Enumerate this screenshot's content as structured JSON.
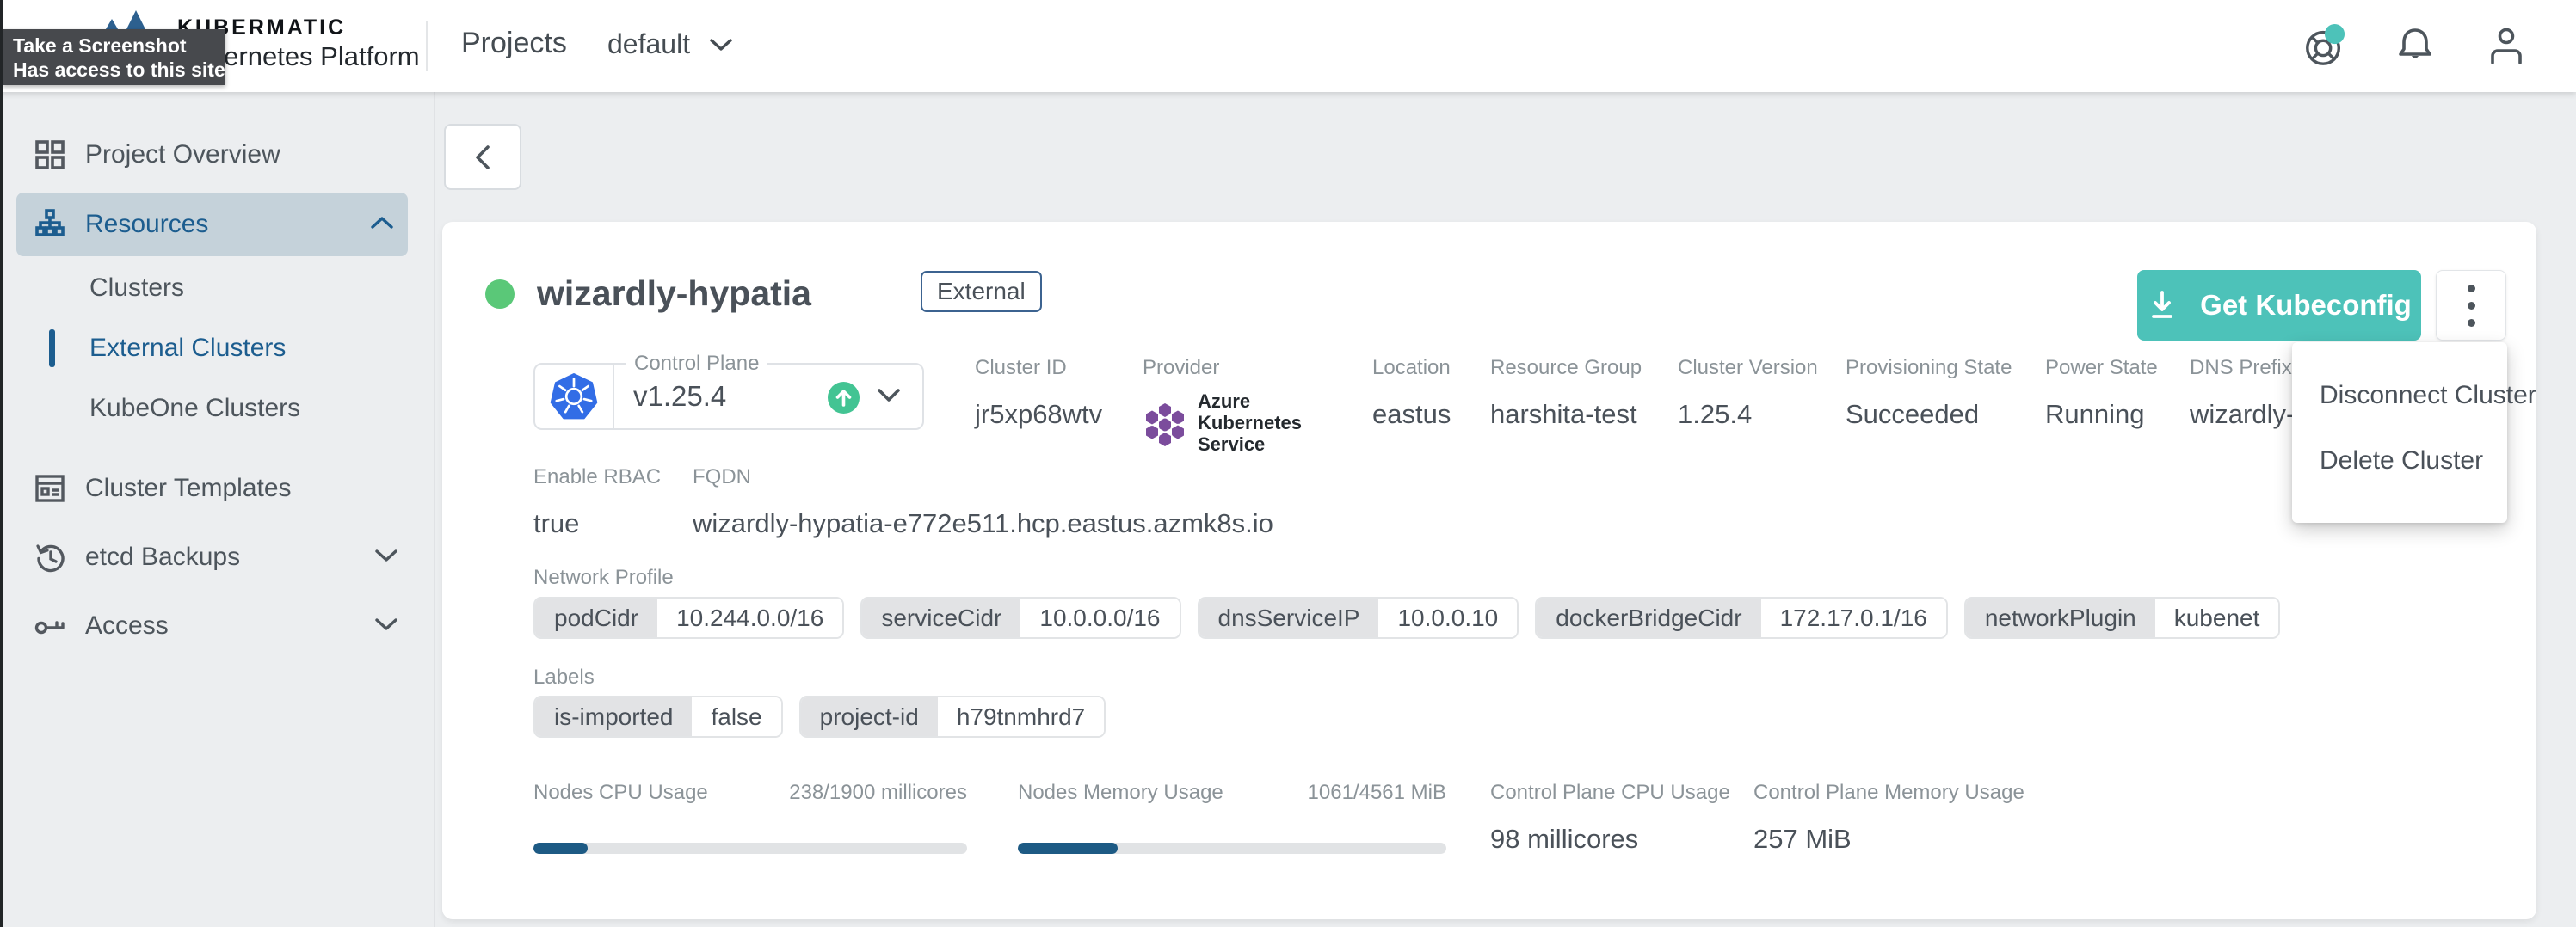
{
  "colors": {
    "accent_teal": "#4dc2b9",
    "nav_blue": "#1c5d8f",
    "progress_blue": "#1d5a84",
    "status_green": "#5ac878",
    "upgrade_green": "#43c493",
    "kubernetes_blue": "#326de6",
    "azure_purple": "#7b4c9c",
    "tooltip_bg": "#47494d"
  },
  "icons": {
    "brand": "kubermatic-triangles",
    "help": "lifebuoy-with-teal-dot",
    "notifications": "bell",
    "user": "person",
    "back": "chevron-left",
    "download": "arrow-down-to-line",
    "more": "vertical-dots",
    "status": "green-circle",
    "upgrade_available": "arrow-up-in-green-circle",
    "control_plane": "kubernetes-wheel-heptagon",
    "provider": "azure-hexagon-cluster"
  },
  "tooltip": {
    "line1": "Take a Screenshot",
    "line2": "Has access to this site"
  },
  "topbar": {
    "brand_top": "KUBERMATIC",
    "brand_bottom": "Kubernetes Platform",
    "nav_projects": "Projects",
    "project_selector": "default"
  },
  "sidebar": {
    "items": [
      {
        "label": "Project Overview"
      },
      {
        "label": "Resources"
      },
      {
        "label": "Clusters"
      },
      {
        "label": "External Clusters"
      },
      {
        "label": "KubeOne Clusters"
      },
      {
        "label": "Cluster Templates"
      },
      {
        "label": "etcd Backups"
      },
      {
        "label": "Access"
      }
    ]
  },
  "cluster": {
    "name": "wizardly-hypatia",
    "type_badge": "External",
    "status": "green"
  },
  "actions": {
    "get_kubeconfig": "Get Kubeconfig",
    "menu": [
      {
        "label": "Disconnect Cluster"
      },
      {
        "label": "Delete Cluster"
      }
    ]
  },
  "control_plane": {
    "label": "Control Plane",
    "version": "v1.25.4"
  },
  "details": [
    {
      "label": "Cluster ID",
      "value": "jr5xp68wtv"
    },
    {
      "label": "Provider",
      "value": "Azure Kubernetes Service"
    },
    {
      "label": "Location",
      "value": "eastus"
    },
    {
      "label": "Resource Group",
      "value": "harshita-test"
    },
    {
      "label": "Cluster Version",
      "value": "1.25.4"
    },
    {
      "label": "Provisioning State",
      "value": "Succeeded"
    },
    {
      "label": "Power State",
      "value": "Running"
    },
    {
      "label": "DNS Prefix",
      "value": "wizardly-"
    }
  ],
  "rbac": {
    "label": "Enable RBAC",
    "value": "true"
  },
  "fqdn": {
    "label": "FQDN",
    "value": "wizardly-hypatia-e772e511.hcp.eastus.azmk8s.io"
  },
  "network_profile": {
    "label": "Network Profile",
    "entries": [
      {
        "key": "podCidr",
        "value": "10.244.0.0/16"
      },
      {
        "key": "serviceCidr",
        "value": "10.0.0.0/16"
      },
      {
        "key": "dnsServiceIP",
        "value": "10.0.0.10"
      },
      {
        "key": "dockerBridgeCidr",
        "value": "172.17.0.1/16"
      },
      {
        "key": "networkPlugin",
        "value": "kubenet"
      }
    ]
  },
  "labels": {
    "label": "Labels",
    "entries": [
      {
        "key": "is-imported",
        "value": "false"
      },
      {
        "key": "project-id",
        "value": "h79tnmhrd7"
      }
    ]
  },
  "metrics": {
    "nodes_cpu": {
      "label": "Nodes CPU Usage",
      "value": "238/1900 millicores",
      "percent": 12.5
    },
    "nodes_memory": {
      "label": "Nodes Memory Usage",
      "value": "1061/4561 MiB",
      "percent": 23.3
    },
    "cp_cpu": {
      "label": "Control Plane CPU Usage",
      "value": "98 millicores"
    },
    "cp_memory": {
      "label": "Control Plane Memory Usage",
      "value": "257 MiB"
    }
  }
}
